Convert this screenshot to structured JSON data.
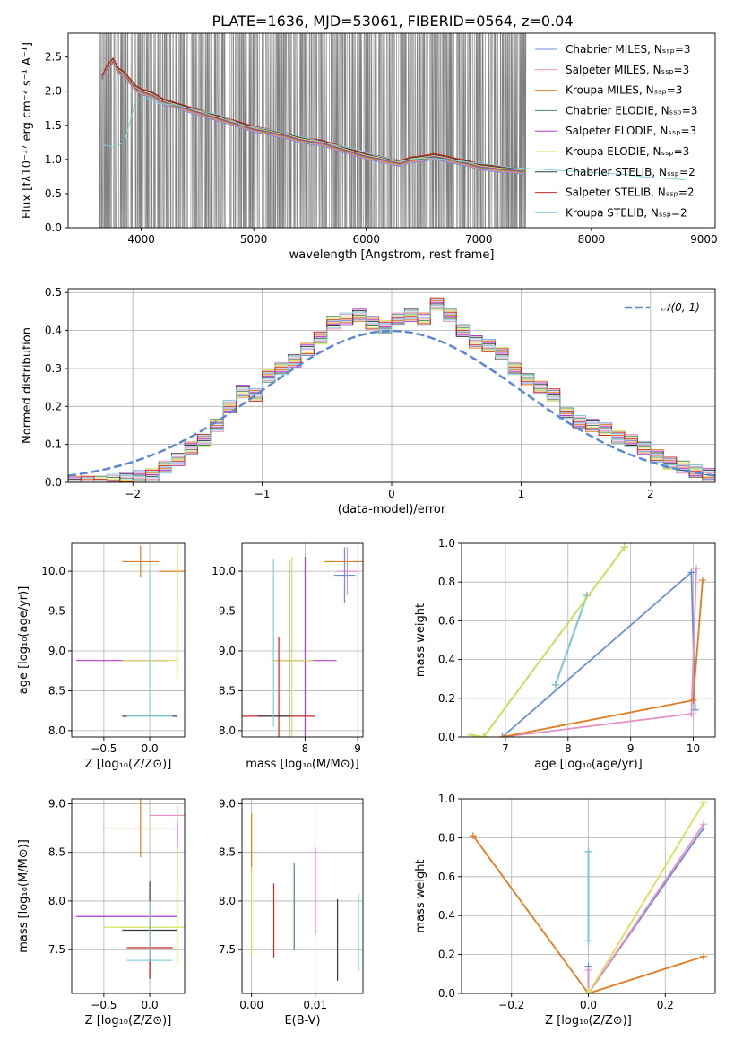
{
  "figure_title": "PLATE=1636, MJD=53061, FIBERID=0564, z=0.04",
  "colors": {
    "data_spectrum": "#808080",
    "Chabrier MILES": "#6b8fd6",
    "Salpeter MILES": "#e88fc4",
    "Kroupa MILES": "#e07b1f",
    "Chabrier ELODIE": "#4c8a5e",
    "Salpeter ELODIE": "#b23ad0",
    "Kroupa ELODIE": "#d8e05a",
    "Chabrier STELIB": "#3a3a3a",
    "Salpeter STELIB": "#c8281e",
    "Kroupa STELIB": "#7fd0d8",
    "gaussian": "#5b87d6",
    "grid": "#b0b0b0"
  },
  "chart_data": [
    {
      "id": "spectrum",
      "type": "line",
      "title": "",
      "xlabel": "wavelength [Angstrom, rest frame]",
      "ylabel": "Flux [fλ10⁻¹⁷ erg cm⁻² s⁻¹ A⁻¹]",
      "xlim": [
        3350,
        9100
      ],
      "ylim": [
        0,
        2.85
      ],
      "xticks": [
        4000,
        5000,
        6000,
        7000,
        8000,
        9000
      ],
      "yticks": [
        0.0,
        0.5,
        1.0,
        1.5,
        2.0,
        2.5
      ],
      "grid": false,
      "legend_placement": "top-right",
      "legend": [
        "Chabrier MILES, Nₛₛₚ=3",
        "Salpeter MILES, Nₛₛₚ=3",
        "Kroupa MILES, Nₛₛₚ=3",
        "Chabrier ELODIE, Nₛₛₚ=3",
        "Salpeter ELODIE, Nₛₛₚ=3",
        "Kroupa ELODIE, Nₛₛₚ=3",
        "Chabrier STELIB, Nₛₛₚ=2",
        "Salpeter STELIB, Nₛₛₚ=2",
        "Kroupa STELIB, Nₛₛₚ=2"
      ],
      "data_noise_range": [
        3630,
        7420
      ],
      "model_curve": {
        "x": [
          3650,
          3700,
          3750,
          3800,
          3850,
          3900,
          3950,
          4000,
          4100,
          4200,
          4300,
          4400,
          4500,
          4600,
          4700,
          4800,
          4900,
          5000,
          5100,
          5200,
          5300,
          5400,
          5500,
          5600,
          5700,
          5800,
          5900,
          6000,
          6100,
          6200,
          6300,
          6400,
          6500,
          6600,
          6700,
          6800,
          6900,
          7000,
          7100,
          7200,
          7300,
          7400
        ],
        "y": [
          2.2,
          2.35,
          2.45,
          2.3,
          2.25,
          2.15,
          2.05,
          2.0,
          1.95,
          1.85,
          1.8,
          1.75,
          1.7,
          1.65,
          1.6,
          1.55,
          1.5,
          1.45,
          1.42,
          1.38,
          1.35,
          1.3,
          1.27,
          1.25,
          1.2,
          1.15,
          1.1,
          1.05,
          1.02,
          0.98,
          0.95,
          1.0,
          1.02,
          1.05,
          1.02,
          0.98,
          0.95,
          0.9,
          0.88,
          0.86,
          0.85,
          0.83
        ]
      },
      "stelib_curve": {
        "x": [
          3650,
          3750,
          3850,
          3950,
          4050,
          4150,
          4300,
          4500,
          4700,
          4900,
          5100,
          5300,
          5500,
          5700,
          5900,
          6100,
          6300,
          6500,
          6700,
          6900,
          7100,
          7300,
          7500,
          7700,
          7900,
          8100,
          8300,
          8500,
          8700,
          8830
        ],
        "y": [
          1.22,
          1.18,
          1.25,
          1.85,
          1.9,
          1.82,
          1.8,
          1.72,
          1.65,
          1.5,
          1.45,
          1.38,
          1.3,
          1.22,
          1.15,
          1.05,
          0.98,
          1.02,
          1.0,
          0.96,
          0.93,
          0.88,
          0.86,
          0.84,
          0.82,
          0.8,
          0.78,
          0.74,
          0.72,
          0.7
        ]
      }
    },
    {
      "id": "residuals",
      "type": "line",
      "title": "",
      "xlabel": "(data-model)/error",
      "ylabel": "Normed distribution",
      "xlim": [
        -2.5,
        2.5
      ],
      "ylim": [
        0,
        0.51
      ],
      "xticks": [
        -2,
        -1,
        0,
        1,
        2
      ],
      "yticks": [
        0.0,
        0.1,
        0.2,
        0.3,
        0.4,
        0.5
      ],
      "grid": true,
      "legend_placement": "top-right",
      "legend": [
        "𝒩(0, 1)"
      ],
      "hist_bin_edges": [
        -2.5,
        -2.4,
        -2.3,
        -2.2,
        -2.1,
        -2.0,
        -1.9,
        -1.8,
        -1.7,
        -1.6,
        -1.5,
        -1.4,
        -1.3,
        -1.2,
        -1.1,
        -1.0,
        -0.9,
        -0.8,
        -0.7,
        -0.6,
        -0.5,
        -0.4,
        -0.3,
        -0.2,
        -0.1,
        0.0,
        0.1,
        0.2,
        0.3,
        0.4,
        0.5,
        0.6,
        0.7,
        0.8,
        0.9,
        1.0,
        1.1,
        1.2,
        1.3,
        1.4,
        1.5,
        1.6,
        1.7,
        1.8,
        1.9,
        2.0,
        2.1,
        2.2,
        2.3,
        2.4,
        2.5
      ],
      "hist_values": [
        0.0,
        0.0,
        0.0,
        0.005,
        0.01,
        0.015,
        0.02,
        0.04,
        0.06,
        0.09,
        0.11,
        0.15,
        0.2,
        0.24,
        0.23,
        0.28,
        0.3,
        0.32,
        0.35,
        0.38,
        0.42,
        0.43,
        0.44,
        0.42,
        0.41,
        0.43,
        0.44,
        0.43,
        0.47,
        0.44,
        0.4,
        0.37,
        0.36,
        0.34,
        0.3,
        0.27,
        0.25,
        0.23,
        0.18,
        0.16,
        0.15,
        0.14,
        0.12,
        0.11,
        0.09,
        0.07,
        0.05,
        0.04,
        0.03,
        0.02
      ],
      "gaussian": {
        "mu": 0,
        "sigma": 1
      }
    },
    {
      "id": "age-vs-Z",
      "type": "scatter",
      "xlabel": "Z [log₁₀(Z/Z⊙)]",
      "ylabel": "age  [log₁₀(age/yr)]",
      "xlim": [
        -0.85,
        0.38
      ],
      "ylim": [
        7.92,
        10.35
      ],
      "xticks": [
        -0.5,
        0.0
      ],
      "yticks": [
        8.0,
        8.5,
        9.0,
        9.5,
        10.0
      ],
      "grid": true,
      "points": [
        {
          "s": "Kroupa MILES",
          "x": -0.1,
          "y": 10.12,
          "xerr": 0.2,
          "yerr": 0.2
        },
        {
          "s": "Kroupa MILES",
          "x": 0.3,
          "y": 10.0,
          "xerr": 0.2,
          "yerr": 0.0
        },
        {
          "s": "Chabrier MILES",
          "x": 0.3,
          "y": 9.95,
          "xerr": 0.0,
          "yerr": 0.35
        },
        {
          "s": "Salpeter MILES",
          "x": 0.3,
          "y": 10.0,
          "xerr": 0.0,
          "yerr": 0.3
        },
        {
          "s": "Kroupa ELODIE",
          "x": 0.3,
          "y": 10.05,
          "xerr": 0.0,
          "yerr": 1.4
        },
        {
          "s": "Salpeter ELODIE",
          "x": -0.3,
          "y": 8.88,
          "xerr": 0.5,
          "yerr": 0.0
        },
        {
          "s": "Kroupa ELODIE",
          "x": 0.0,
          "y": 8.88,
          "xerr": 0.3,
          "yerr": 0.0
        },
        {
          "s": "Chabrier STELIB",
          "x": 0.0,
          "y": 8.18,
          "xerr": 0.3,
          "yerr": 0.0
        },
        {
          "s": "Kroupa STELIB",
          "x": 0.0,
          "y": 8.18,
          "xerr": 0.25,
          "yerr": 0.0
        },
        {
          "s": "Kroupa STELIB",
          "x": 0.0,
          "y": 9.1,
          "xerr": 0.0,
          "yerr": 0.9
        }
      ]
    },
    {
      "id": "age-vs-mass",
      "type": "scatter",
      "xlabel": "mass [log₁₀(M/M⊙)]",
      "ylabel": "",
      "xlim": [
        6.8,
        9.1
      ],
      "ylim": [
        7.92,
        10.35
      ],
      "xticks": [
        8,
        9
      ],
      "yticks": [
        8.0,
        8.5,
        9.0,
        9.5,
        10.0
      ],
      "grid": true,
      "points": [
        {
          "s": "Kroupa MILES",
          "x": 8.75,
          "y": 10.12,
          "xerr": 0.4,
          "yerr": 0.0
        },
        {
          "s": "Salpeter MILES",
          "x": 8.8,
          "y": 10.0,
          "xerr": 0.2,
          "yerr": 0.3
        },
        {
          "s": "Chabrier MILES",
          "x": 8.75,
          "y": 9.95,
          "xerr": 0.2,
          "yerr": 0.35
        },
        {
          "s": "Salpeter ELODIE",
          "x": 8.0,
          "y": 8.88,
          "xerr": 0.6,
          "yerr": 1.3
        },
        {
          "s": "Kroupa ELODIE",
          "x": 7.75,
          "y": 8.88,
          "xerr": 0.4,
          "yerr": 1.3
        },
        {
          "s": "Chabrier ELODIE",
          "x": 7.7,
          "y": 8.88,
          "xerr": 0.0,
          "yerr": 1.25
        },
        {
          "s": "Salpeter STELIB",
          "x": 7.5,
          "y": 8.18,
          "xerr": 0.7,
          "yerr": 1.0
        },
        {
          "s": "Chabrier STELIB",
          "x": 7.4,
          "y": 8.18,
          "xerr": 0.3,
          "yerr": 0.0
        },
        {
          "s": "Kroupa STELIB",
          "x": 7.4,
          "y": 9.1,
          "xerr": 0.0,
          "yerr": 1.05
        }
      ]
    },
    {
      "id": "weight-vs-age",
      "type": "line",
      "xlabel": "age  [log₁₀(age/yr)]",
      "ylabel": "mass weight",
      "xlim": [
        6.3,
        10.35
      ],
      "ylim": [
        0,
        1.0
      ],
      "xticks": [
        7,
        8,
        9,
        10
      ],
      "yticks": [
        0.0,
        0.2,
        0.4,
        0.6,
        0.8,
        1.0
      ],
      "grid": true,
      "series": [
        {
          "name": "Chabrier MILES",
          "x": [
            6.95,
            9.97,
            10.03
          ],
          "y": [
            0.0,
            0.85,
            0.14
          ]
        },
        {
          "name": "Salpeter MILES",
          "x": [
            6.95,
            9.97,
            10.05
          ],
          "y": [
            0.0,
            0.12,
            0.87
          ]
        },
        {
          "name": "Kroupa MILES",
          "x": [
            6.95,
            10.0,
            10.15
          ],
          "y": [
            0.0,
            0.19,
            0.81
          ]
        },
        {
          "name": "Chabrier STELIB",
          "x": [
            7.8,
            8.3
          ],
          "y": [
            0.27,
            0.73
          ]
        },
        {
          "name": "Kroupa STELIB",
          "x": [
            7.8,
            8.3
          ],
          "y": [
            0.27,
            0.73
          ]
        },
        {
          "name": "Chabrier ELODIE",
          "x": [
            6.45,
            6.65,
            8.9
          ],
          "y": [
            0.01,
            0.0,
            0.98
          ]
        },
        {
          "name": "Kroupa ELODIE",
          "x": [
            6.45,
            6.65,
            8.9
          ],
          "y": [
            0.01,
            0.0,
            0.98
          ]
        }
      ]
    },
    {
      "id": "mass-vs-Z",
      "type": "scatter",
      "xlabel": "Z [log₁₀(Z/Z⊙)]",
      "ylabel": "mass [log₁₀(M/M⊙)]",
      "xlim": [
        -0.85,
        0.38
      ],
      "ylim": [
        7.05,
        9.05
      ],
      "xticks": [
        -0.5,
        0.0
      ],
      "yticks": [
        7.5,
        8.0,
        8.5,
        9.0
      ],
      "grid": true,
      "points": [
        {
          "s": "Salpeter MILES",
          "x": 0.3,
          "y": 8.88,
          "xerr": 0.3,
          "yerr": 0.1
        },
        {
          "s": "Kroupa MILES",
          "x": -0.1,
          "y": 8.75,
          "xerr": 0.4,
          "yerr": 0.3
        },
        {
          "s": "Chabrier MILES",
          "x": 0.3,
          "y": 8.75,
          "xerr": 0.0,
          "yerr": 0.1
        },
        {
          "s": "Salpeter ELODIE",
          "x": 0.3,
          "y": 8.5,
          "xerr": 0.0,
          "yerr": 0.3
        },
        {
          "s": "Salpeter ELODIE",
          "x": -0.25,
          "y": 7.84,
          "xerr": 0.55,
          "yerr": 0.0
        },
        {
          "s": "Kroupa ELODIE",
          "x": 0.0,
          "y": 7.73,
          "xerr": 0.5,
          "yerr": 0.0
        },
        {
          "s": "Kroupa ELODIE",
          "x": 0.3,
          "y": 7.95,
          "xerr": 0.0,
          "yerr": 0.6
        },
        {
          "s": "Chabrier STELIB",
          "x": 0.0,
          "y": 7.7,
          "xerr": 0.3,
          "yerr": 0.5
        },
        {
          "s": "Salpeter STELIB",
          "x": 0.0,
          "y": 7.52,
          "xerr": 0.25,
          "yerr": 0.3
        },
        {
          "s": "Kroupa STELIB",
          "x": 0.0,
          "y": 7.39,
          "xerr": 0.25,
          "yerr": 0.0
        },
        {
          "s": "Kroupa STELIB",
          "x": 0.0,
          "y": 7.7,
          "xerr": 0.0,
          "yerr": 0.3
        }
      ]
    },
    {
      "id": "mass-vs-EBV",
      "type": "scatter",
      "xlabel": "E(B-V)",
      "ylabel": "",
      "xlim": [
        -0.0015,
        0.0175
      ],
      "ylim": [
        7.05,
        9.05
      ],
      "xticks": [
        0.0,
        0.01
      ],
      "yticks": [
        7.5,
        8.0,
        8.5,
        9.0
      ],
      "grid": true,
      "points": [
        {
          "s": "Kroupa MILES",
          "x": 0.0,
          "y": 8.6,
          "xerr": 0.0,
          "yerr": 0.3
        },
        {
          "s": "Kroupa ELODIE",
          "x": 0.0,
          "y": 7.9,
          "xerr": 0.0,
          "yerr": 0.45
        },
        {
          "s": "Salpeter STELIB",
          "x": 0.0035,
          "y": 7.8,
          "xerr": 0.0,
          "yerr": 0.38
        },
        {
          "s": "Chabrier ELODIE",
          "x": 0.0067,
          "y": 7.94,
          "xerr": 0.0,
          "yerr": 0.45
        },
        {
          "s": "Salpeter ELODIE",
          "x": 0.01,
          "y": 8.1,
          "xerr": 0.0,
          "yerr": 0.45
        },
        {
          "s": "Chabrier STELIB",
          "x": 0.0135,
          "y": 7.6,
          "xerr": 0.0,
          "yerr": 0.42
        },
        {
          "s": "Kroupa STELIB",
          "x": 0.0168,
          "y": 7.68,
          "xerr": 0.0,
          "yerr": 0.4
        }
      ]
    },
    {
      "id": "weight-vs-Z",
      "type": "line",
      "xlabel": "Z [log₁₀(Z/Z⊙)]",
      "ylabel": "mass weight",
      "xlim": [
        -0.33,
        0.33
      ],
      "ylim": [
        0,
        1.0
      ],
      "xticks": [
        -0.2,
        0.0,
        0.2
      ],
      "yticks": [
        0.0,
        0.2,
        0.4,
        0.6,
        0.8,
        1.0
      ],
      "grid": true,
      "series": [
        {
          "name": "Kroupa MILES",
          "x": [
            -0.3,
            0.0,
            0.3
          ],
          "y": [
            0.81,
            0.0,
            0.19
          ]
        },
        {
          "name": "Chabrier MILES",
          "x": [
            0.0,
            0.0,
            0.3
          ],
          "y": [
            0.14,
            0.0,
            0.85
          ]
        },
        {
          "name": "Salpeter MILES",
          "x": [
            0.0,
            0.0,
            0.3
          ],
          "y": [
            0.12,
            0.0,
            0.87
          ]
        },
        {
          "name": "Kroupa ELODIE",
          "x": [
            0.0,
            0.0,
            0.3
          ],
          "y": [
            0.01,
            0.0,
            0.98
          ]
        },
        {
          "name": "Chabrier STELIB",
          "x": [
            0.0,
            0.0
          ],
          "y": [
            0.27,
            0.73
          ]
        },
        {
          "name": "Kroupa STELIB",
          "x": [
            0.0,
            0.0
          ],
          "y": [
            0.27,
            0.73
          ]
        }
      ]
    }
  ]
}
